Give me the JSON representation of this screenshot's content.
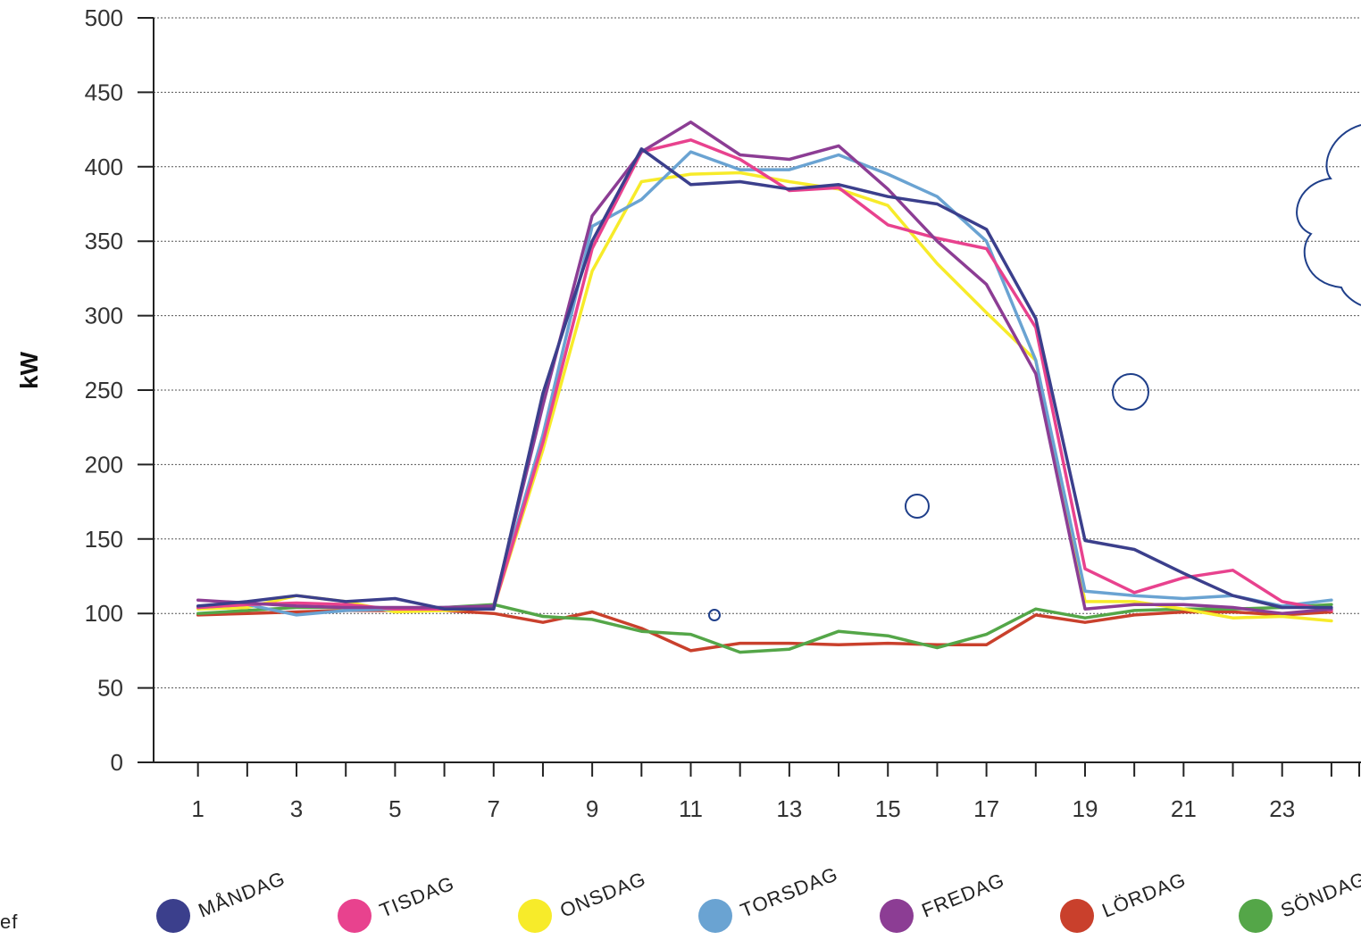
{
  "chart_data": {
    "type": "line",
    "ylabel": "kW",
    "xlabel": "",
    "ylim": [
      0,
      500
    ],
    "xlim": [
      0.1,
      24.6
    ],
    "yticks": [
      0,
      50,
      100,
      150,
      200,
      250,
      300,
      350,
      400,
      450,
      500
    ],
    "xtick_labels": [
      "1",
      "3",
      "5",
      "7",
      "9",
      "11",
      "13",
      "15",
      "17",
      "19",
      "21",
      "23"
    ],
    "grid": true,
    "legend_position": "bottom",
    "x": [
      1,
      2,
      3,
      4,
      5,
      6,
      7,
      8,
      9,
      10,
      11,
      12,
      13,
      14,
      15,
      16,
      17,
      18,
      19,
      20,
      21,
      22,
      23,
      24
    ],
    "series": [
      {
        "name": "MÅNDAG",
        "color": "#3b3f8c",
        "values": [
          105,
          108,
          112,
          108,
          110,
          103,
          103,
          248,
          350,
          412,
          388,
          390,
          385,
          388,
          380,
          375,
          358,
          298,
          149,
          143,
          127,
          112,
          104,
          104
        ]
      },
      {
        "name": "TISDAG",
        "color": "#e8428e",
        "values": [
          104,
          106,
          107,
          106,
          103,
          103,
          104,
          215,
          345,
          410,
          418,
          405,
          384,
          386,
          361,
          352,
          345,
          292,
          130,
          114,
          124,
          129,
          108,
          102
        ]
      },
      {
        "name": "ONSDAG",
        "color": "#f7eb2a",
        "values": [
          103,
          104,
          112,
          108,
          101,
          102,
          104,
          210,
          330,
          390,
          395,
          396,
          390,
          385,
          374,
          335,
          302,
          270,
          108,
          108,
          103,
          97,
          98,
          95
        ]
      },
      {
        "name": "TORSDAG",
        "color": "#6aa3d2",
        "values": [
          104,
          106,
          99,
          102,
          103,
          104,
          105,
          220,
          360,
          378,
          410,
          398,
          398,
          408,
          395,
          380,
          350,
          270,
          115,
          112,
          110,
          112,
          105,
          109
        ]
      },
      {
        "name": "FREDAG",
        "color": "#8c3d94",
        "values": [
          109,
          107,
          105,
          104,
          104,
          104,
          105,
          240,
          367,
          410,
          430,
          408,
          405,
          414,
          385,
          350,
          321,
          261,
          103,
          106,
          106,
          104,
          100,
          103
        ]
      },
      {
        "name": "LÖRDAG",
        "color": "#c9402c",
        "values": [
          99,
          100,
          101,
          102,
          102,
          102,
          100,
          94,
          101,
          90,
          75,
          80,
          80,
          79,
          80,
          79,
          79,
          99,
          94,
          99,
          101,
          101,
          99,
          101
        ]
      },
      {
        "name": "SÖNDAG",
        "color": "#54a648",
        "values": [
          100,
          102,
          104,
          104,
          103,
          104,
          106,
          98,
          96,
          88,
          86,
          74,
          76,
          88,
          85,
          77,
          86,
          103,
          97,
          102,
          103,
          103,
          104,
          106
        ]
      }
    ]
  },
  "cropped_left_text": "ef"
}
